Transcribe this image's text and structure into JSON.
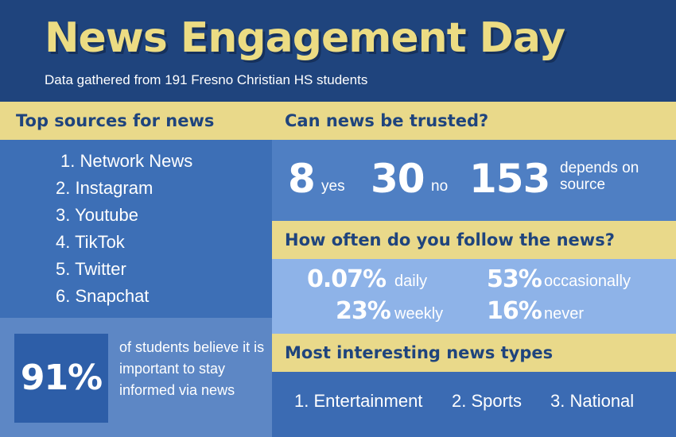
{
  "header": {
    "title": "News Engagement Day",
    "subtitle": "Data gathered from 191 Fresno Christian HS students"
  },
  "top_sources": {
    "heading": "Top sources for news",
    "items": [
      "1. Network News",
      "2. Instagram",
      "3. Youtube",
      "4. TikTok",
      "5. Twitter",
      "6. Snapchat"
    ]
  },
  "importance": {
    "value": "91%",
    "text": "of students believe it is important to stay informed via news"
  },
  "trust": {
    "heading": "Can news be trusted?",
    "stats": [
      {
        "value": "8",
        "label": "yes"
      },
      {
        "value": "30",
        "label": "no"
      },
      {
        "value": "153",
        "label_line1": "depends on",
        "label_line2": "source"
      }
    ]
  },
  "follow": {
    "heading": "How often do you follow the news?",
    "stats": [
      {
        "value": "0.07%",
        "label": "daily"
      },
      {
        "value": "53%",
        "label": "occasionally"
      },
      {
        "value": "23%",
        "label": "weekly"
      },
      {
        "value": "16%",
        "label": "never"
      }
    ]
  },
  "types": {
    "heading": "Most interesting news types",
    "items": [
      "1. Entertainment",
      "2. Sports",
      "3. National"
    ]
  },
  "colors": {
    "header_bg": "#1f447d",
    "accent_yellow": "#e9d98a",
    "title_yellow": "#ecdc83",
    "panel_blue": "#3d6fb6",
    "light_blue": "#8eb3e8"
  }
}
